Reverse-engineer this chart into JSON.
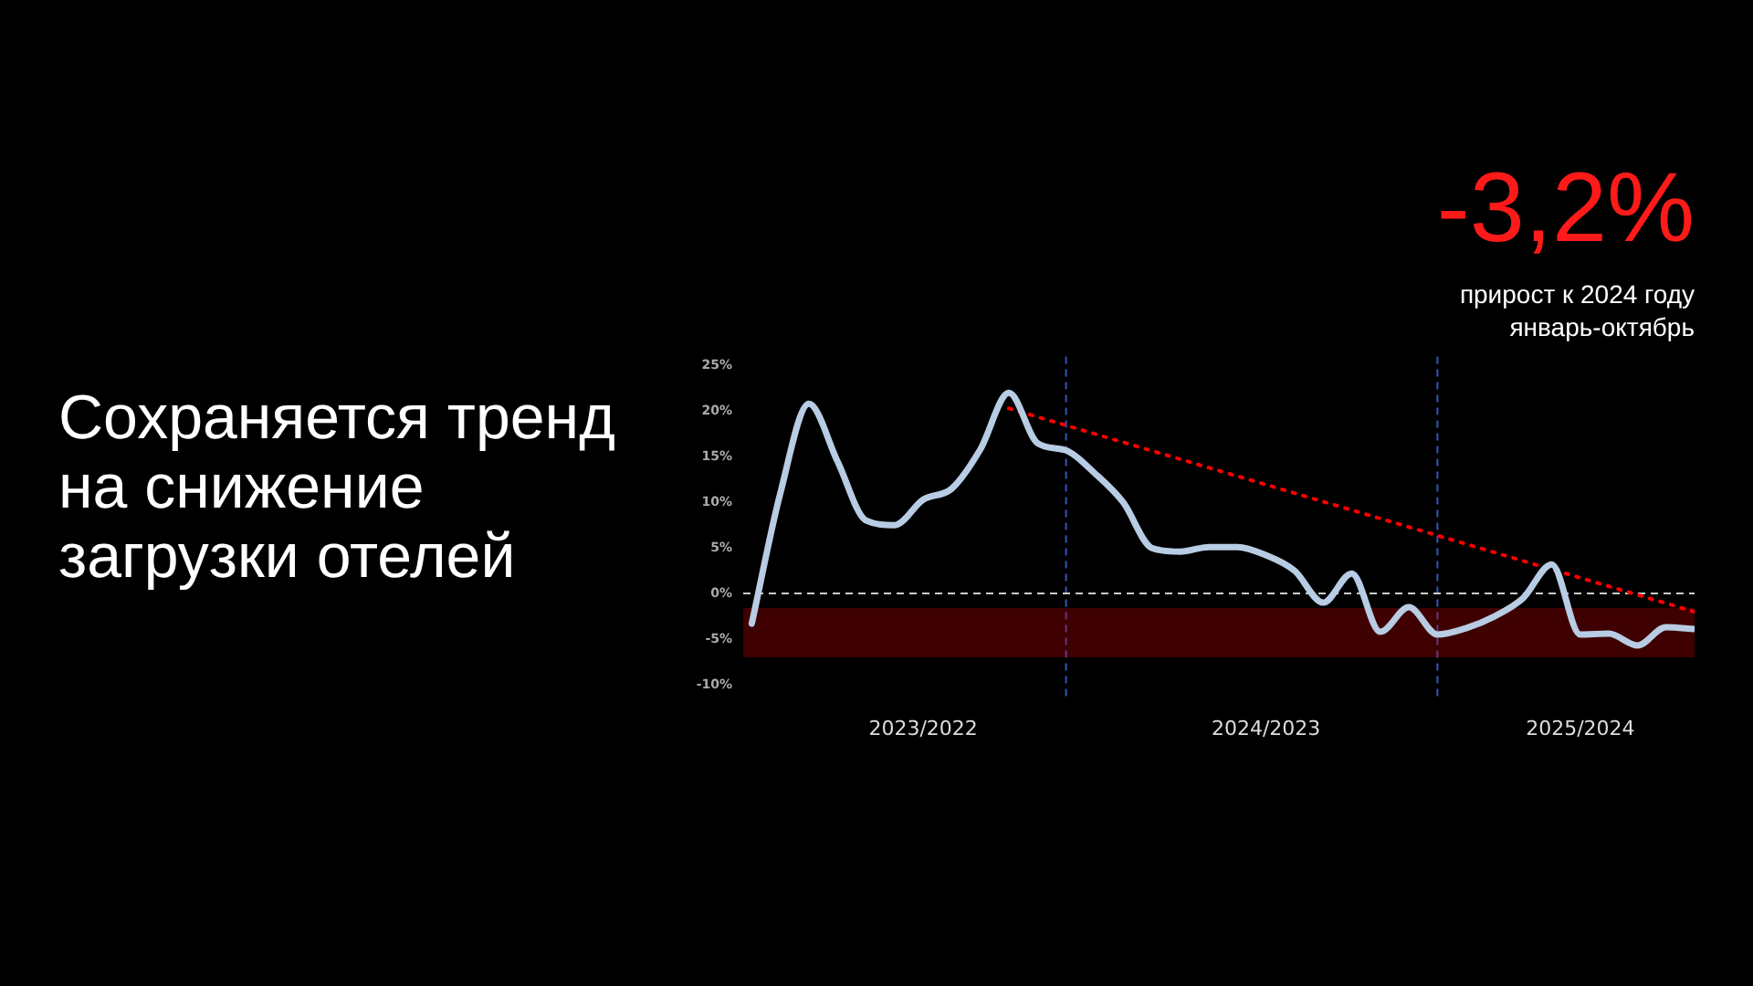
{
  "chart_data": {
    "type": "line",
    "title": "Сохраняется тренд на снижение загрузки отелей",
    "annotations": [
      "-3,2%",
      "прирост к 2024 году",
      "январь-октябрь"
    ],
    "categories": [
      null,
      null,
      null,
      null,
      null,
      null,
      "2023/2022",
      null,
      null,
      null,
      null,
      null,
      null,
      null,
      null,
      null,
      null,
      null,
      "2024/2023",
      null,
      null,
      null,
      null,
      null,
      null,
      null,
      null,
      null,
      null,
      "2025/2024",
      null,
      null,
      null,
      null
    ],
    "series": [
      {
        "color": "#b8cce4",
        "values": [
          -3.3,
          11,
          20.8,
          14.5,
          8,
          7.5,
          10.3,
          11.5,
          15.8,
          22,
          16.5,
          15.7,
          13.2,
          10,
          5,
          4.6,
          5.1,
          5.1,
          4.2,
          2.5,
          -1,
          2.2,
          -4.2,
          -1.5,
          -4.5,
          -3.8,
          -2.5,
          -0.5,
          3.2,
          -4.5,
          -4.4,
          -5.7,
          -3.7,
          -3.9
        ]
      },
      {
        "type": "line",
        "color": "#ff0000",
        "line_style": "dotted",
        "values": [
          null,
          null,
          null,
          null,
          null,
          null,
          null,
          null,
          null,
          20.3,
          null,
          null,
          null,
          null,
          null,
          null,
          null,
          null,
          null,
          null,
          null,
          null,
          null,
          null,
          null,
          null,
          null,
          null,
          null,
          null,
          null,
          null,
          null,
          -2
        ]
      }
    ],
    "ylim": [
      -10,
      25
    ],
    "yticks": [
      {
        "value": -10,
        "label": "-10%"
      },
      {
        "value": -5,
        "label": "-5%"
      },
      {
        "value": 0,
        "label": "0%"
      },
      {
        "value": 5,
        "label": "5%"
      },
      {
        "value": 10,
        "label": "10%"
      },
      {
        "value": 15,
        "label": "15%"
      },
      {
        "value": 20,
        "label": "20%"
      },
      {
        "value": 25,
        "label": "25%"
      }
    ],
    "ref_lines": [
      {
        "axis": "y",
        "value": 0,
        "color": "#cccccc",
        "line_style": "dashed"
      }
    ],
    "bands": [
      {
        "axis": "y",
        "from": -7,
        "to": -1.6,
        "color": "#cc0000"
      }
    ],
    "legend": false,
    "marker": "none",
    "line_style": "solid"
  }
}
